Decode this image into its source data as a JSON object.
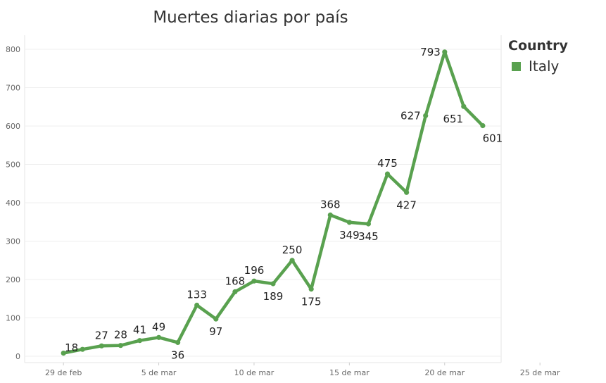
{
  "chart_data": {
    "type": "line",
    "title": "Muertes diarias por país",
    "xlabel": "",
    "ylabel": "",
    "x": [
      "2020-02-29",
      "2020-03-01",
      "2020-03-02",
      "2020-03-03",
      "2020-03-04",
      "2020-03-05",
      "2020-03-06",
      "2020-03-07",
      "2020-03-08",
      "2020-03-09",
      "2020-03-10",
      "2020-03-11",
      "2020-03-12",
      "2020-03-13",
      "2020-03-14",
      "2020-03-15",
      "2020-03-16",
      "2020-03-17",
      "2020-03-18",
      "2020-03-19",
      "2020-03-20",
      "2020-03-21",
      "2020-03-22"
    ],
    "x_tick_labels": [
      "29 de feb",
      "5 de mar",
      "10 de mar",
      "15 de mar",
      "20 de mar",
      "25 de mar"
    ],
    "x_range": [
      "2020-02-27",
      "2020-03-25"
    ],
    "ylim": [
      0,
      850
    ],
    "y_ticks": [
      0,
      100,
      200,
      300,
      400,
      500,
      600,
      700,
      800
    ],
    "grid": true,
    "legend": {
      "title": "Country",
      "position": "right"
    },
    "series": [
      {
        "name": "Italy",
        "color": "#59a14f",
        "values": [
          8,
          18,
          27,
          28,
          41,
          49,
          36,
          133,
          97,
          168,
          196,
          189,
          250,
          175,
          368,
          349,
          345,
          475,
          427,
          627,
          793,
          651,
          601
        ],
        "labels": [
          "",
          "18",
          "27",
          "28",
          "41",
          "49",
          "36",
          "133",
          "97",
          "168",
          "196",
          "189",
          "250",
          "175",
          "368",
          "349",
          "345",
          "475",
          "427",
          "627",
          "793",
          "651",
          "601"
        ]
      }
    ]
  }
}
